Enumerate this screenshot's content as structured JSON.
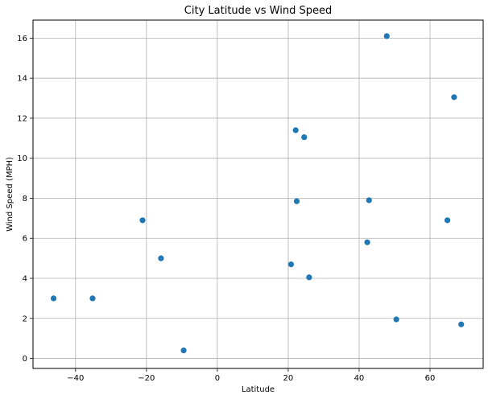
{
  "chart_data": {
    "type": "scatter",
    "title": "City Latitude vs Wind Speed",
    "xlabel": "Latitude",
    "ylabel": "Wind Speed (MPH)",
    "xlim": [
      -52,
      75
    ],
    "ylim": [
      -0.5,
      16.9
    ],
    "xticks": [
      -40,
      -20,
      0,
      20,
      40,
      60
    ],
    "yticks": [
      0,
      2,
      4,
      6,
      8,
      10,
      12,
      14,
      16
    ],
    "grid": true,
    "marker_color": "#1f77b4",
    "points": [
      {
        "x": -46.2,
        "y": 3.0
      },
      {
        "x": -35.2,
        "y": 3.0
      },
      {
        "x": -21.1,
        "y": 6.9
      },
      {
        "x": -15.9,
        "y": 5.0
      },
      {
        "x": -9.5,
        "y": 0.4
      },
      {
        "x": 20.8,
        "y": 4.7
      },
      {
        "x": 22.1,
        "y": 11.4
      },
      {
        "x": 22.4,
        "y": 7.85
      },
      {
        "x": 24.5,
        "y": 11.05
      },
      {
        "x": 25.9,
        "y": 4.05
      },
      {
        "x": 42.3,
        "y": 5.8
      },
      {
        "x": 42.8,
        "y": 7.9
      },
      {
        "x": 47.8,
        "y": 16.1
      },
      {
        "x": 50.5,
        "y": 1.95
      },
      {
        "x": 64.9,
        "y": 6.9
      },
      {
        "x": 66.8,
        "y": 13.05
      },
      {
        "x": 68.8,
        "y": 1.7
      }
    ]
  }
}
